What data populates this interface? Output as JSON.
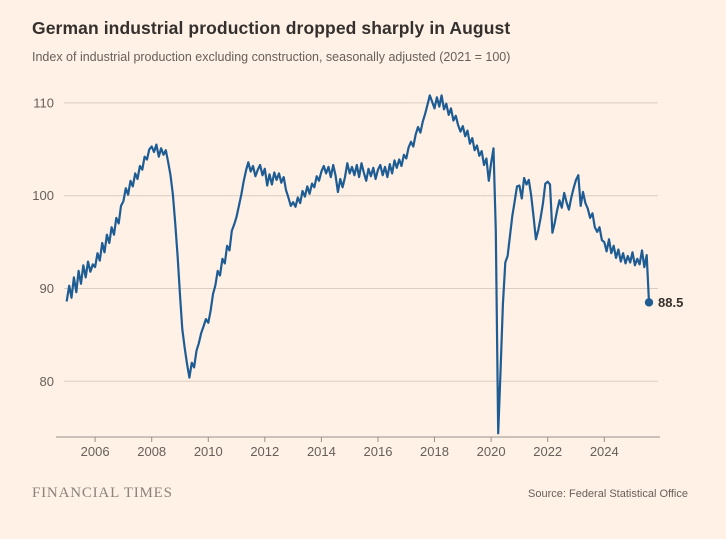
{
  "header": {
    "title": "German industrial production dropped sharply in August",
    "subtitle": "Index of industrial production excluding construction, seasonally adjusted (2021 = 100)"
  },
  "footer": {
    "brand": "FINANCIAL TIMES",
    "source": "Source: Federal Statistical Office"
  },
  "colors": {
    "background": "#FFF1E5",
    "line": "#1E5C94",
    "grid": "#DACDC2",
    "axis": "#99918A",
    "text": "#33302E",
    "muted": "#66605C",
    "brand": "#8A837B"
  },
  "chart_data": {
    "type": "line",
    "title": "German industrial production dropped sharply in August",
    "subtitle": "Index of industrial production excluding construction, seasonally adjusted (2021 = 100)",
    "xlabel": "",
    "ylabel": "",
    "x_ticks": [
      2006,
      2008,
      2010,
      2012,
      2014,
      2016,
      2018,
      2020,
      2022,
      2024
    ],
    "y_ticks": [
      80,
      90,
      100,
      110
    ],
    "x_range": [
      2004.9,
      2025.9
    ],
    "y_range": [
      74,
      111.6
    ],
    "grid": "horizontal",
    "legend": "none",
    "last_point_label": "88.5",
    "last_value": 88.5,
    "last_period": "August 2025",
    "series": [
      {
        "name": "Industrial production index (2021 = 100)",
        "start_year": 2005,
        "start_month": 1,
        "frequency": "monthly",
        "values": [
          88.7,
          90.3,
          89.0,
          91.2,
          89.6,
          91.9,
          90.5,
          92.5,
          91.2,
          92.9,
          91.8,
          92.6,
          92.3,
          93.8,
          93.0,
          94.9,
          93.9,
          95.8,
          94.9,
          96.6,
          95.8,
          97.6,
          97.0,
          98.9,
          99.4,
          100.8,
          100.1,
          101.6,
          101.0,
          102.4,
          101.8,
          103.2,
          102.8,
          104.2,
          103.9,
          105.0,
          105.3,
          104.7,
          105.5,
          104.2,
          105.1,
          104.4,
          104.9,
          103.6,
          102.2,
          100.1,
          96.9,
          93.5,
          89.3,
          85.6,
          83.6,
          81.9,
          80.4,
          82.0,
          81.5,
          83.3,
          84.1,
          85.2,
          85.9,
          86.7,
          86.3,
          87.6,
          89.4,
          90.3,
          91.9,
          91.4,
          93.2,
          92.7,
          94.6,
          94.1,
          96.2,
          96.9,
          97.7,
          98.9,
          100.1,
          101.5,
          102.7,
          103.6,
          102.6,
          103.2,
          102.1,
          102.8,
          103.3,
          102.2,
          102.9,
          101.1,
          102.3,
          101.2,
          102.5,
          101.7,
          102.4,
          101.4,
          102.0,
          100.6,
          99.8,
          98.9,
          99.3,
          98.8,
          99.8,
          99.2,
          100.5,
          99.9,
          101.0,
          100.2,
          101.3,
          100.9,
          102.1,
          101.6,
          102.6,
          103.2,
          102.4,
          103.1,
          102.0,
          103.3,
          102.2,
          100.4,
          101.8,
          100.9,
          102.0,
          103.5,
          102.4,
          103.1,
          102.2,
          103.3,
          102.0,
          103.5,
          102.5,
          101.6,
          102.9,
          102.1,
          103.0,
          101.8,
          102.8,
          103.3,
          102.2,
          103.1,
          102.0,
          103.4,
          102.4,
          103.8,
          103.0,
          103.9,
          103.2,
          104.4,
          104.0,
          105.2,
          105.8,
          105.3,
          106.6,
          107.4,
          106.8,
          108.0,
          108.8,
          109.8,
          110.8,
          110.1,
          109.4,
          110.6,
          109.6,
          110.8,
          109.3,
          109.9,
          108.7,
          109.4,
          108.1,
          108.6,
          107.6,
          106.9,
          107.5,
          106.4,
          107.0,
          105.6,
          106.2,
          104.9,
          105.4,
          104.3,
          104.8,
          103.3,
          104.0,
          101.6,
          103.5,
          105.1,
          96.2,
          74.4,
          81.0,
          88.3,
          92.8,
          93.5,
          95.7,
          97.8,
          99.4,
          101.0,
          101.1,
          99.7,
          101.9,
          101.2,
          101.7,
          100.0,
          97.8,
          95.3,
          96.3,
          97.6,
          99.2,
          101.3,
          101.5,
          101.2,
          96.0,
          97.1,
          98.4,
          99.5,
          98.7,
          100.3,
          99.3,
          98.5,
          99.8,
          100.8,
          101.7,
          102.2,
          98.9,
          100.4,
          99.2,
          98.6,
          97.6,
          98.1,
          96.6,
          96.1,
          96.6,
          95.2,
          95.0,
          94.0,
          95.3,
          93.8,
          94.6,
          93.3,
          94.2,
          92.9,
          93.8,
          92.7,
          93.5,
          92.8,
          93.9,
          92.5,
          93.2,
          92.6,
          94.1,
          92.3,
          93.6,
          88.5
        ]
      }
    ]
  }
}
